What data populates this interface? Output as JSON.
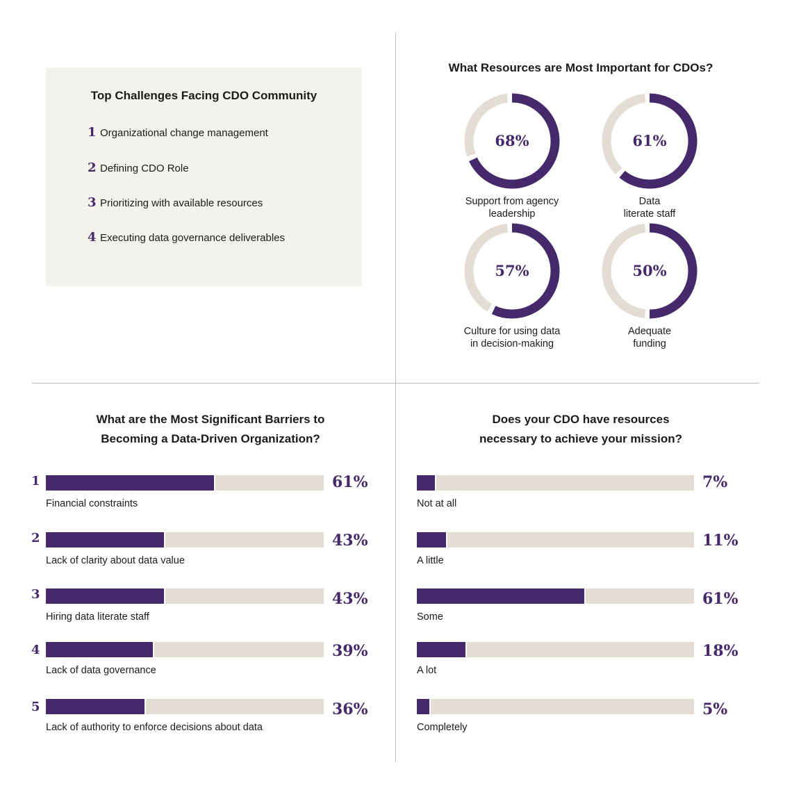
{
  "colors": {
    "accent": "#45296a",
    "track": "#e4ddd3",
    "box": "#f4f2ec"
  },
  "challenges": {
    "title": "Top Challenges Facing CDO Community",
    "items": [
      {
        "num": "1",
        "text": "Organizational change management"
      },
      {
        "num": "2",
        "text": "Defining CDO Role"
      },
      {
        "num": "3",
        "text": "Prioritizing with available resources"
      },
      {
        "num": "4",
        "text": "Executing data governance deliverables"
      }
    ]
  },
  "chart_data": [
    {
      "type": "pie",
      "title": "What Resources are Most Important for CDOs?",
      "categories": [
        "Support from agency leadership",
        "Data literate staff",
        "Culture for using data in decision-making",
        "Adequate funding"
      ],
      "label_lines": [
        [
          "Support from agency",
          "leadership"
        ],
        [
          "Data",
          "literate staff"
        ],
        [
          "Culture for using data",
          "in decision-making"
        ],
        [
          "Adequate",
          "funding"
        ]
      ],
      "values": [
        68,
        61,
        57,
        50
      ],
      "labels": [
        "68%",
        "61%",
        "57%",
        "50%"
      ]
    },
    {
      "type": "bar",
      "title_lines": [
        "What are the Most Significant Barriers to",
        "Becoming a Data-Driven Organization?"
      ],
      "ranks": [
        "1",
        "2",
        "3",
        "4",
        "5"
      ],
      "categories": [
        "Financial constraints",
        "Lack of clarity about data value",
        "Hiring data literate staff",
        "Lack of data governance",
        "Lack of authority to enforce decisions about data"
      ],
      "values": [
        61,
        43,
        43,
        39,
        36
      ],
      "labels": [
        "61%",
        "43%",
        "43%",
        "39%",
        "36%"
      ],
      "xlim": [
        0,
        100
      ]
    },
    {
      "type": "bar",
      "title_lines": [
        "Does your CDO have resources",
        "necessary to achieve your mission?"
      ],
      "categories": [
        "Not at all",
        "A little",
        "Some",
        "A lot",
        "Completely"
      ],
      "values": [
        7,
        11,
        61,
        18,
        5
      ],
      "labels": [
        "7%",
        "11%",
        "61%",
        "18%",
        "5%"
      ],
      "xlim": [
        0,
        100
      ]
    }
  ]
}
